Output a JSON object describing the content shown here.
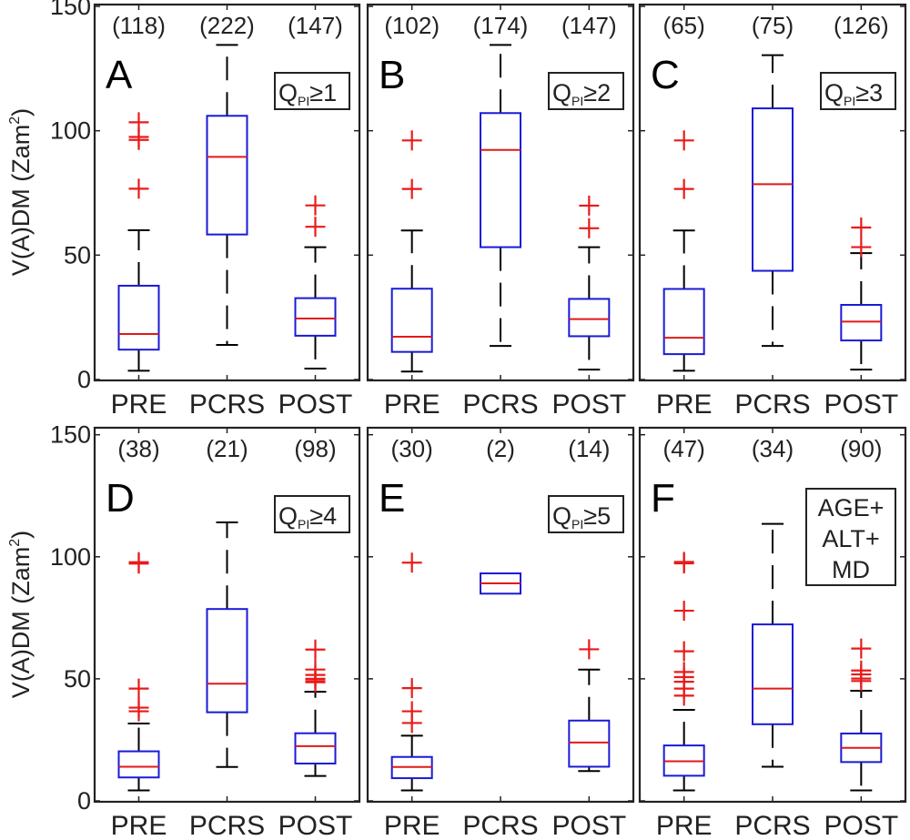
{
  "chart_data": {
    "type": "box",
    "ylabel": "V(A)DM (Zam²)",
    "ylabel_base": "V(A)DM (Zam",
    "ylabel_sup": "2",
    "ylabel_close": ")",
    "ylim": [
      0,
      150
    ],
    "yticks": [
      0,
      50,
      100,
      150
    ],
    "categories": [
      "PRE",
      "PCRS",
      "POST"
    ],
    "colors": {
      "box": "#1a1ad6",
      "median": "#e01919",
      "outlier": "#e81a1a",
      "whisker": "#000000",
      "frame": "#222222"
    },
    "panels": [
      {
        "letter": "A",
        "legend": {
          "type": "qpi",
          "main": "Q",
          "sub": "PI",
          "rel": "≥1"
        },
        "counts": [
          "(118)",
          "(222)",
          "(147)"
        ],
        "boxes": [
          {
            "category": "PRE",
            "low": 3.5,
            "q1": 12,
            "median": 18.3,
            "q3": 37.7,
            "high": 60,
            "outliers": [
              103.4,
              97.5,
              96.3,
              76.7
            ]
          },
          {
            "category": "PCRS",
            "low": 13.9,
            "q1": 58.3,
            "median": 89.5,
            "q3": 106,
            "high": 134.5,
            "outliers": []
          },
          {
            "category": "POST",
            "low": 4.4,
            "q1": 17.6,
            "median": 24.5,
            "q3": 32.7,
            "high": 53.2,
            "outliers": [
              70,
              61.4
            ]
          }
        ]
      },
      {
        "letter": "B",
        "legend": {
          "type": "qpi",
          "main": "Q",
          "sub": "PI",
          "rel": "≥2"
        },
        "counts": [
          "(102)",
          "(174)",
          "(147)"
        ],
        "boxes": [
          {
            "category": "PRE",
            "low": 3.2,
            "q1": 11.1,
            "median": 17.2,
            "q3": 36.5,
            "high": 59.9,
            "outliers": [
              96.1,
              76.6
            ]
          },
          {
            "category": "PCRS",
            "low": 13.5,
            "q1": 53.2,
            "median": 92.3,
            "q3": 107.1,
            "high": 134.5,
            "outliers": []
          },
          {
            "category": "POST",
            "low": 4.0,
            "q1": 17.4,
            "median": 24.3,
            "q3": 32.4,
            "high": 53.2,
            "outliers": [
              69.9,
              60.8
            ]
          }
        ]
      },
      {
        "letter": "C",
        "legend": {
          "type": "qpi",
          "main": "Q",
          "sub": "PI",
          "rel": "≥3"
        },
        "counts": [
          "(65)",
          "(75)",
          "(126)"
        ],
        "boxes": [
          {
            "category": "PRE",
            "low": 3.5,
            "q1": 10.2,
            "median": 16.8,
            "q3": 36.4,
            "high": 59.9,
            "outliers": [
              96.1,
              76.6
            ]
          },
          {
            "category": "PCRS",
            "low": 13.5,
            "q1": 43.7,
            "median": 78.5,
            "q3": 109,
            "high": 130.4,
            "outliers": []
          },
          {
            "category": "POST",
            "low": 4.0,
            "q1": 15.7,
            "median": 23.3,
            "q3": 30,
            "high": 50.8,
            "outliers": [
              61.1,
              53.2
            ]
          }
        ]
      },
      {
        "letter": "D",
        "legend": {
          "type": "qpi",
          "main": "Q",
          "sub": "PI",
          "rel": "≥4"
        },
        "counts": [
          "(38)",
          "(21)",
          "(98)"
        ],
        "boxes": [
          {
            "category": "PRE",
            "low": 4.3,
            "q1": 9.6,
            "median": 14,
            "q3": 20.3,
            "high": 31.7,
            "outliers": [
              97.8,
              97.2,
              46,
              38.2,
              36.7
            ]
          },
          {
            "category": "PCRS",
            "low": 13.9,
            "q1": 36.3,
            "median": 48,
            "q3": 78.6,
            "high": 114.1,
            "outliers": []
          },
          {
            "category": "POST",
            "low": 10.2,
            "q1": 15.3,
            "median": 22.4,
            "q3": 27.7,
            "high": 44.7,
            "outliers": [
              62,
              53.8,
              51.6,
              50,
              49.1,
              48.6
            ]
          }
        ]
      },
      {
        "letter": "E",
        "legend": {
          "type": "qpi",
          "main": "Q",
          "sub": "PI",
          "rel": "≥5"
        },
        "counts": [
          "(30)",
          "(2)",
          "(14)"
        ],
        "boxes": [
          {
            "category": "PRE",
            "low": 4.3,
            "q1": 9.3,
            "median": 13.9,
            "q3": 18,
            "high": 26.7,
            "outliers": [
              97.6,
              46.2,
              36.7,
              31.9
            ]
          },
          {
            "category": "PCRS",
            "low": 84.9,
            "q1": 84.9,
            "median": 89.1,
            "q3": 93.2,
            "high": 93.2,
            "outliers": []
          },
          {
            "category": "POST",
            "low": 12.2,
            "q1": 14,
            "median": 23.9,
            "q3": 32.9,
            "high": 53.8,
            "outliers": [
              62.1
            ]
          }
        ]
      },
      {
        "letter": "F",
        "legend": {
          "type": "lines",
          "lines": [
            "AGE+",
            "ALT+",
            "MD"
          ]
        },
        "counts": [
          "(47)",
          "(34)",
          "(90)"
        ],
        "boxes": [
          {
            "category": "PRE",
            "low": 4.3,
            "q1": 10.3,
            "median": 16.2,
            "q3": 22.7,
            "high": 37.3,
            "outliers": [
              97.9,
              97.3,
              77.9,
              61.3,
              52.8,
              50.7,
              48.8,
              46,
              43.1
            ]
          },
          {
            "category": "PCRS",
            "low": 14,
            "q1": 31.4,
            "median": 46,
            "q3": 72.3,
            "high": 113.5,
            "outliers": []
          },
          {
            "category": "POST",
            "low": 4.3,
            "q1": 15.9,
            "median": 21.7,
            "q3": 27.6,
            "high": 45.1,
            "outliers": [
              62.4,
              53.4,
              51.8,
              50.1,
              49.1
            ]
          }
        ]
      }
    ]
  }
}
